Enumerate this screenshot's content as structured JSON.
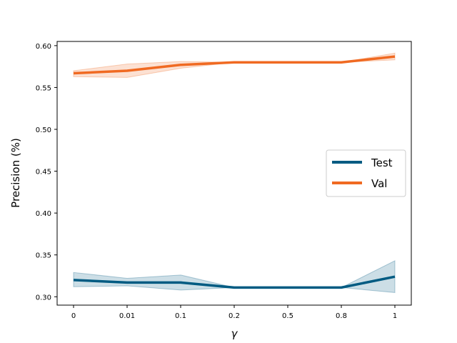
{
  "chart_data": {
    "type": "line",
    "categories": [
      "0",
      "0.01",
      "0.1",
      "0.2",
      "0.5",
      "0.8",
      "1"
    ],
    "xlabel": "γ",
    "ylabel": "Precision (%)",
    "ylim": [
      0.29,
      0.605
    ],
    "yticks": [
      "0.30",
      "0.35",
      "0.40",
      "0.45",
      "0.50",
      "0.55",
      "0.60"
    ],
    "grid": false,
    "legend_position": "center-right",
    "series": [
      {
        "name": "Test",
        "color": "#005b82",
        "values": [
          0.32,
          0.317,
          0.317,
          0.311,
          0.311,
          0.311,
          0.324
        ],
        "lower": [
          0.312,
          0.313,
          0.308,
          0.311,
          0.311,
          0.311,
          0.305
        ],
        "upper": [
          0.329,
          0.322,
          0.326,
          0.311,
          0.311,
          0.311,
          0.343
        ]
      },
      {
        "name": "Val",
        "color": "#f06a22",
        "values": [
          0.567,
          0.57,
          0.577,
          0.58,
          0.58,
          0.58,
          0.587
        ],
        "lower": [
          0.563,
          0.562,
          0.573,
          0.58,
          0.58,
          0.58,
          0.583
        ],
        "upper": [
          0.57,
          0.578,
          0.581,
          0.58,
          0.58,
          0.58,
          0.591
        ]
      }
    ]
  }
}
